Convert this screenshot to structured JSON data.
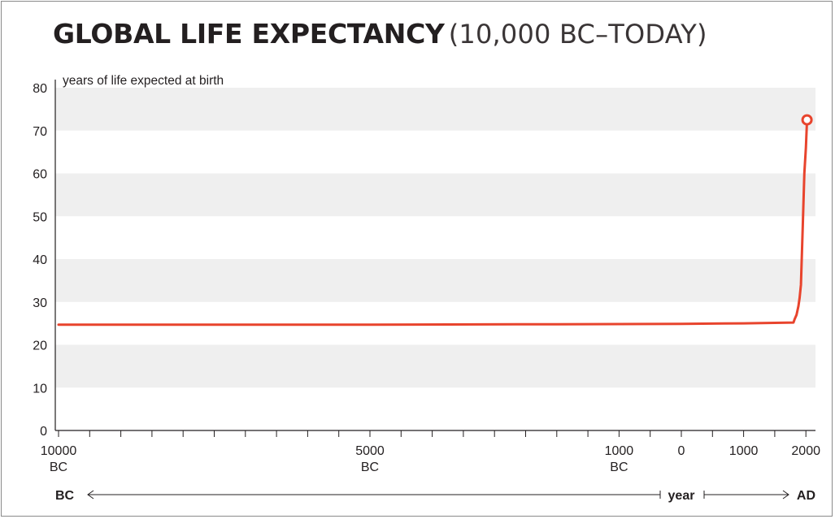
{
  "chart_data": {
    "type": "line",
    "title": "GLOBAL LIFE EXPECTANCY",
    "subtitle": "(10,000 BC–TODAY)",
    "ylabel": "years of life expected at birth",
    "ylim": [
      0,
      80
    ],
    "y_ticks": [
      0,
      10,
      20,
      30,
      40,
      50,
      60,
      70,
      80
    ],
    "xlim": [
      -10000,
      2018
    ],
    "x_ticks": [
      {
        "value": -10000,
        "line1": "10000",
        "line2": "BC"
      },
      {
        "value": -5000,
        "line1": "5000",
        "line2": "BC"
      },
      {
        "value": -1000,
        "line1": "1000",
        "line2": "BC"
      },
      {
        "value": 0,
        "line1": "0",
        "line2": ""
      },
      {
        "value": 1000,
        "line1": "1000",
        "line2": ""
      },
      {
        "value": 2000,
        "line1": "2000",
        "line2": ""
      }
    ],
    "bands": "alternating light-gray bands between y-ticks",
    "grid": false,
    "series": [
      {
        "color": "#e8442d",
        "x": [
          -10000,
          -5000,
          -2000,
          0,
          1000,
          1800,
          1820,
          1850,
          1880,
          1900,
          1920,
          1950,
          1975,
          2000,
          2018
        ],
        "y": [
          24.7,
          24.7,
          24.8,
          24.9,
          25,
          25.2,
          26,
          27,
          29,
          31,
          34,
          48,
          60,
          66,
          72.5
        ]
      }
    ],
    "end_marker": {
      "x": 2018,
      "y": 72.5,
      "shape": "open-circle"
    },
    "bottom_axis": {
      "left": "BC",
      "middle": "year",
      "right": "AD"
    }
  },
  "colors": {
    "line": "#e8442d",
    "band": "#efefef",
    "axis": "#231f20"
  }
}
